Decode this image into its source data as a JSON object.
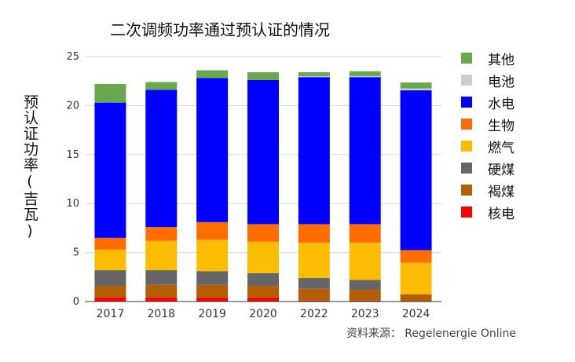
{
  "chart_data": {
    "type": "bar",
    "stacked": true,
    "title": "二次调频功率通过预认证的情况",
    "ylabel": "预认证功率(吉瓦)",
    "xlabel": "",
    "ylim": [
      0,
      25
    ],
    "yticks": [
      0,
      5,
      10,
      15,
      20,
      25
    ],
    "grid": true,
    "legend_position": "right",
    "categories": [
      "2017",
      "2018",
      "2019",
      "2020",
      "2022",
      "2023",
      "2024"
    ],
    "series": [
      {
        "name": "核电",
        "color": "#ff0000",
        "values": [
          0.4,
          0.4,
          0.4,
          0.4,
          0.1,
          0.1,
          0.0
        ]
      },
      {
        "name": "褐煤",
        "color": "#b45f06",
        "values": [
          1.2,
          1.3,
          1.3,
          1.2,
          1.2,
          1.1,
          0.75
        ]
      },
      {
        "name": "硬煤",
        "color": "#666666",
        "values": [
          1.6,
          1.5,
          1.4,
          1.3,
          1.1,
          1.0,
          0.0
        ]
      },
      {
        "name": "燃气",
        "color": "#fbbc04",
        "values": [
          2.1,
          3.0,
          3.2,
          3.2,
          3.6,
          3.8,
          3.2
        ]
      },
      {
        "name": "生物",
        "color": "#ff6d01",
        "values": [
          1.2,
          1.4,
          1.8,
          1.8,
          1.9,
          1.9,
          1.3
        ]
      },
      {
        "name": "水电",
        "color": "#0000ff",
        "values": [
          13.8,
          14.0,
          14.7,
          14.7,
          15.0,
          15.0,
          16.3
        ]
      },
      {
        "name": "电池",
        "color": "#cccccc",
        "values": [
          0.0,
          0.0,
          0.0,
          0.0,
          0.1,
          0.1,
          0.2
        ]
      },
      {
        "name": "其他",
        "color": "#6aa84f",
        "values": [
          1.9,
          0.8,
          0.8,
          0.8,
          0.4,
          0.5,
          0.6
        ]
      }
    ],
    "legend_order": [
      "其他",
      "电池",
      "水电",
      "生物",
      "燃气",
      "硬煤",
      "褐煤",
      "核电"
    ]
  },
  "source_text": "资料来源： Regelenergie Online"
}
